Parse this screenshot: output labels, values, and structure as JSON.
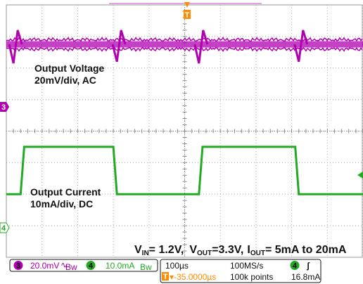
{
  "chart_data": {
    "type": "line",
    "title": "",
    "xlabel": "",
    "ylabel": "",
    "grid": true,
    "x_divisions": 10,
    "y_divisions": 8,
    "time_per_div": "100µs",
    "annotations": {
      "voltage_label_line1": "Output Voltage",
      "voltage_label_line2": "20mV/div, AC",
      "current_label_line1": "Output Current",
      "current_label_line2": "10mA/div, DC"
    },
    "conditions": {
      "vin_main": "V",
      "vin_sub": "IN",
      "vin_value": "= 1.2V,",
      "vout_main": "V",
      "vout_sub": "OUT",
      "vout_value": "=3.3V,",
      "iout_main": "I",
      "iout_sub": "OUT",
      "iout_value": "= 5mA to 20mA"
    },
    "series": [
      {
        "channel": "3",
        "color": "#b000b0",
        "coupling": "AC",
        "scale_label": "20.0mV",
        "ground_div": 2.75,
        "noise_band_div": 0.2,
        "transients_div": [
          {
            "x": 0.2,
            "dip": -0.6,
            "peak": 0.45
          },
          {
            "x": 3.1,
            "dip": -0.55,
            "peak": 0.45
          },
          {
            "x": 5.4,
            "dip": -0.6,
            "peak": 0.45
          },
          {
            "x": 8.2,
            "dip": -0.55,
            "peak": 0.45
          }
        ]
      },
      {
        "channel": "4",
        "color": "#22aa22",
        "coupling": "DC",
        "scale_label": "10.0mA",
        "ground_div": -2.5,
        "x_div": [
          0,
          0.4,
          0.5,
          3.0,
          3.1,
          5.4,
          5.5,
          8.1,
          8.2,
          10
        ],
        "y_mA": [
          5,
          5,
          20,
          20,
          5,
          5,
          20,
          20,
          5,
          5
        ]
      }
    ],
    "trigger_level_mA": 16.8
  },
  "markers": {
    "ch3_marker": "3",
    "ch4_marker": "4",
    "trigger_marker": "T"
  },
  "status_bar": {
    "ch3_scale": "20.0mV",
    "ch3_icon": "∿",
    "ch3_bw": "Bw",
    "ch3_num": "3",
    "ch4_num": "4",
    "ch4_scale": "10.0mA",
    "ch4_bw": "Bw",
    "timebase": "100µs",
    "sample_rate": "100MS/s",
    "trigger_delay": "▾-35.0000µs",
    "record_length": "100k points",
    "trigger_source": "4",
    "trigger_slope": "ʃ",
    "trigger_level": "16.8mA"
  },
  "colors": {
    "grid_major": "#aaaaaa",
    "grid_minor": "#bbbbbb",
    "ch3": "#b000b0",
    "ch4": "#22aa22",
    "trigger": "#ff8c00"
  }
}
